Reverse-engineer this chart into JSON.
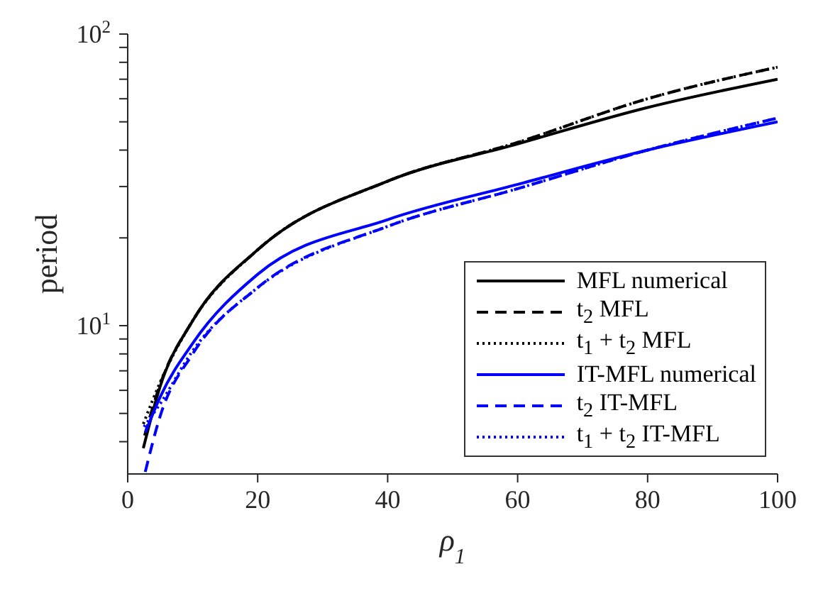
{
  "chart_data": {
    "type": "line",
    "xlabel": "ρ$_{1}$",
    "ylabel": "period",
    "log": "y",
    "grid": false,
    "legend": "bottom right",
    "marker": "none",
    "xlim": [
      0,
      100
    ],
    "xticks": [
      0,
      20,
      40,
      60,
      80,
      100
    ],
    "ylim": [
      3.1,
      100
    ],
    "yticks": [
      {
        "value": 4,
        "label": null
      },
      {
        "value": 5,
        "label": null
      },
      {
        "value": 6,
        "label": null
      },
      {
        "value": 7,
        "label": null
      },
      {
        "value": 8,
        "label": null
      },
      {
        "value": 9,
        "label": null
      },
      {
        "value": 10,
        "label": "10$^{1}$"
      },
      {
        "value": 20,
        "label": null
      },
      {
        "value": 30,
        "label": null
      },
      {
        "value": 40,
        "label": null
      },
      {
        "value": 50,
        "label": null
      },
      {
        "value": 60,
        "label": null
      },
      {
        "value": 70,
        "label": null
      },
      {
        "value": 80,
        "label": null
      },
      {
        "value": 90,
        "label": null
      },
      {
        "value": 100,
        "label": "10$^{2}$"
      }
    ],
    "series": [
      {
        "name": "MFL numerical",
        "color": "#000000",
        "line_style": "solid",
        "x": [
          2.4,
          5,
          10,
          20,
          40,
          60,
          80,
          100
        ],
        "values": [
          3.8,
          6.2,
          10.4,
          18.2,
          31.3,
          42,
          56,
          70
        ]
      },
      {
        "name": "t$_{2}$ MFL",
        "color": "#000000",
        "line_style": "dashed",
        "x": [
          2.6,
          5,
          10,
          20,
          40,
          60,
          80,
          100
        ],
        "values": [
          4.2,
          6.3,
          10.4,
          18.2,
          31.3,
          42.5,
          60,
          77
        ]
      },
      {
        "name": "t$_{1}$ + t$_{2}$ MFL",
        "color": "#000000",
        "line_style": "dotted",
        "x": [
          2.4,
          5,
          10,
          20,
          40,
          60,
          80,
          100
        ],
        "values": [
          4.6,
          6.4,
          10.4,
          18.2,
          31.3,
          42.5,
          60,
          77
        ]
      },
      {
        "name": "IT-MFL numerical",
        "color": "#0000ff",
        "line_style": "solid",
        "x": [
          2.7,
          5,
          10,
          20,
          40,
          60,
          80,
          100
        ],
        "values": [
          4.3,
          5.7,
          8.7,
          15,
          23.1,
          30.5,
          40,
          50
        ]
      },
      {
        "name": "t$_{2}$ IT-MFL",
        "color": "#0000ff",
        "line_style": "dashed",
        "x": [
          2.7,
          5,
          10,
          20,
          40,
          60,
          80,
          100
        ],
        "values": [
          3.15,
          4.9,
          8,
          13.5,
          21.9,
          29.5,
          40,
          51.5
        ]
      },
      {
        "name": "t$_{1}$ + t$_{2}$ IT-MFL",
        "color": "#0000ff",
        "line_style": "dotted",
        "x": [
          2.5,
          5,
          10,
          20,
          40,
          60,
          80,
          100
        ],
        "values": [
          4.5,
          5.4,
          8.2,
          13.5,
          21.9,
          29.5,
          40,
          51.5
        ]
      }
    ]
  }
}
